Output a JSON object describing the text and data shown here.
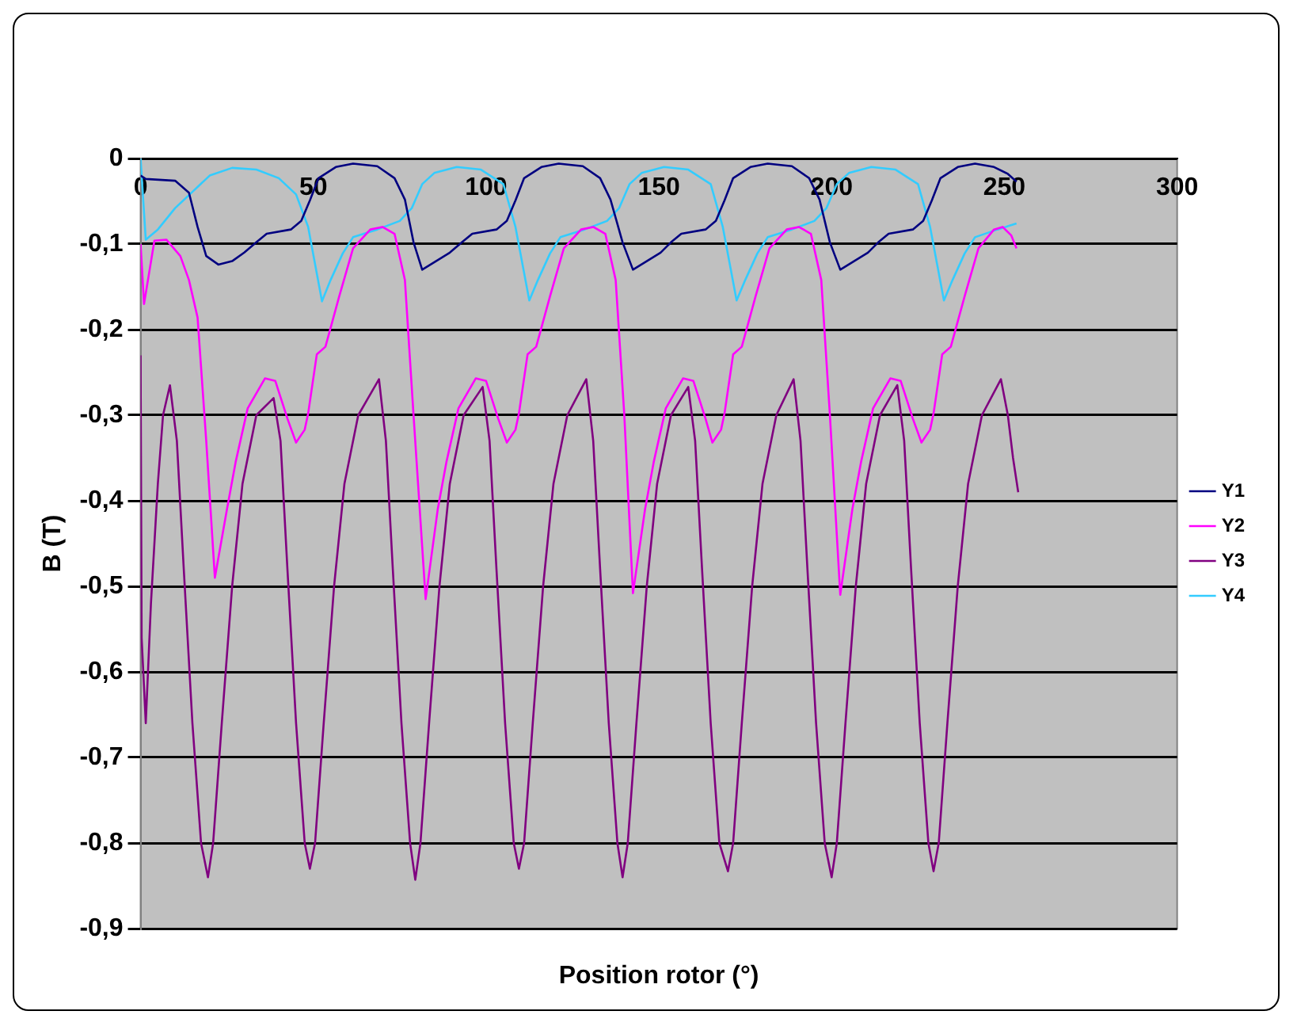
{
  "chart_data": {
    "type": "line",
    "xlabel": "Position rotor (°)",
    "ylabel": "B (T)",
    "xlim": [
      0,
      300
    ],
    "xticks": [
      0,
      50,
      100,
      150,
      200,
      250,
      300
    ],
    "ylim": [
      -0.9,
      0
    ],
    "yticks": [
      {
        "value": 0,
        "label": "0"
      },
      {
        "value": -0.1,
        "label": "-0,1"
      },
      {
        "value": -0.2,
        "label": "-0,2"
      },
      {
        "value": -0.3,
        "label": "-0,3"
      },
      {
        "value": -0.4,
        "label": "-0,4"
      },
      {
        "value": -0.5,
        "label": "-0,5"
      },
      {
        "value": -0.6,
        "label": "-0,6"
      },
      {
        "value": -0.7,
        "label": "-0,7"
      },
      {
        "value": -0.8,
        "label": "-0,8"
      },
      {
        "value": -0.9,
        "label": "-0,9"
      }
    ],
    "grid": "y",
    "legend": "right",
    "marker": "none",
    "line_style": "solid",
    "series": [
      {
        "name": "Y1",
        "color": "#000080",
        "x": [
          0,
          1.5,
          10,
          14,
          16.5,
          19,
          22.5,
          26.5,
          30,
          33.5,
          36.5,
          43.5,
          46.5,
          49,
          51.5,
          56.5,
          61.5,
          68.5,
          73.5,
          76.5,
          79,
          81.5,
          85.5,
          89.5,
          93,
          96,
          103,
          106,
          108.5,
          111,
          116,
          121,
          128,
          133,
          136,
          139.5,
          142.5,
          146.5,
          150.5,
          153.5,
          156.5,
          163.5,
          166.5,
          169,
          171.5,
          176.5,
          181.5,
          188.5,
          193.5,
          196.5,
          199.5,
          202.5,
          206.5,
          210.5,
          213.5,
          216.5,
          223.5,
          226.5,
          229,
          231.5,
          236.5,
          241.5,
          247,
          251,
          253.5
        ],
        "values": [
          -0.02,
          -0.024,
          -0.026,
          -0.04,
          -0.08,
          -0.114,
          -0.124,
          -0.12,
          -0.11,
          -0.098,
          -0.088,
          -0.083,
          -0.073,
          -0.049,
          -0.023,
          -0.01,
          -0.006,
          -0.009,
          -0.023,
          -0.048,
          -0.098,
          -0.13,
          -0.12,
          -0.11,
          -0.098,
          -0.088,
          -0.083,
          -0.073,
          -0.049,
          -0.023,
          -0.01,
          -0.006,
          -0.009,
          -0.023,
          -0.048,
          -0.098,
          -0.13,
          -0.12,
          -0.11,
          -0.098,
          -0.088,
          -0.083,
          -0.073,
          -0.049,
          -0.023,
          -0.01,
          -0.006,
          -0.009,
          -0.023,
          -0.048,
          -0.098,
          -0.13,
          -0.12,
          -0.11,
          -0.098,
          -0.088,
          -0.083,
          -0.073,
          -0.049,
          -0.023,
          -0.01,
          -0.006,
          -0.01,
          -0.018,
          -0.027
        ]
      },
      {
        "name": "Y2",
        "color": "#ff00ff",
        "x": [
          0,
          1,
          4,
          7.5,
          11.5,
          14,
          16.5,
          19,
          21.5,
          25,
          27.5,
          31,
          36,
          39,
          42.5,
          45,
          47.5,
          48.5,
          51,
          53.5,
          57.5,
          61.5,
          66.5,
          70,
          73.5,
          76.5,
          79,
          82.5,
          86,
          88.5,
          92,
          97,
          100,
          103.5,
          106,
          108.5,
          109.5,
          112,
          114.5,
          118.5,
          122.5,
          127.5,
          131,
          134.5,
          137.5,
          140,
          142.5,
          146,
          148.5,
          152,
          157,
          160,
          163.5,
          165.5,
          168,
          169,
          171.5,
          174,
          178,
          182,
          187,
          190.5,
          194,
          197,
          199.5,
          202.5,
          206,
          208.5,
          212,
          217,
          220,
          223.5,
          226,
          228.5,
          229.5,
          232,
          234.5,
          238.5,
          242.5,
          247,
          249.5,
          252,
          253.5
        ],
        "values": [
          -0.1,
          -0.17,
          -0.096,
          -0.095,
          -0.114,
          -0.142,
          -0.186,
          -0.33,
          -0.49,
          -0.41,
          -0.355,
          -0.292,
          -0.257,
          -0.26,
          -0.304,
          -0.332,
          -0.317,
          -0.298,
          -0.229,
          -0.22,
          -0.161,
          -0.105,
          -0.083,
          -0.08,
          -0.088,
          -0.142,
          -0.3,
          -0.515,
          -0.41,
          -0.355,
          -0.292,
          -0.257,
          -0.26,
          -0.304,
          -0.332,
          -0.317,
          -0.298,
          -0.229,
          -0.22,
          -0.161,
          -0.105,
          -0.083,
          -0.08,
          -0.088,
          -0.142,
          -0.3,
          -0.508,
          -0.41,
          -0.355,
          -0.292,
          -0.257,
          -0.26,
          -0.304,
          -0.332,
          -0.317,
          -0.298,
          -0.229,
          -0.22,
          -0.161,
          -0.105,
          -0.083,
          -0.08,
          -0.088,
          -0.142,
          -0.3,
          -0.51,
          -0.41,
          -0.355,
          -0.292,
          -0.257,
          -0.26,
          -0.304,
          -0.332,
          -0.317,
          -0.298,
          -0.229,
          -0.22,
          -0.161,
          -0.105,
          -0.083,
          -0.08,
          -0.09,
          -0.105
        ]
      },
      {
        "name": "Y3",
        "color": "#800080",
        "x": [
          0,
          0.3,
          1.5,
          3,
          5,
          6.5,
          8.5,
          10.5,
          12.5,
          15,
          17.5,
          19.5,
          21,
          23.5,
          26.5,
          29.5,
          33.5,
          38.5,
          40.5,
          42.5,
          45,
          47.5,
          49,
          50.5,
          53,
          56,
          59,
          63,
          69,
          71,
          73,
          75.5,
          78,
          79.5,
          81,
          83.5,
          86.5,
          89.5,
          93.5,
          99,
          101,
          103,
          105.5,
          108,
          109.5,
          111,
          113.5,
          116.5,
          119.5,
          123.5,
          129,
          131,
          133,
          135.5,
          138,
          139.5,
          141,
          143.5,
          146.5,
          149.5,
          153.5,
          158.5,
          160.5,
          162.5,
          165,
          167.5,
          170,
          171.5,
          174,
          177,
          180,
          184,
          189,
          191,
          193,
          195.5,
          198,
          200,
          201.5,
          204,
          207,
          210,
          214,
          219,
          221,
          223,
          225.5,
          228,
          229.5,
          231,
          233.5,
          236.5,
          239.5,
          243.5,
          249,
          251,
          252.5,
          254
        ],
        "values": [
          -0.23,
          -0.56,
          -0.66,
          -0.52,
          -0.38,
          -0.3,
          -0.265,
          -0.33,
          -0.48,
          -0.66,
          -0.8,
          -0.84,
          -0.8,
          -0.66,
          -0.5,
          -0.38,
          -0.3,
          -0.28,
          -0.33,
          -0.48,
          -0.66,
          -0.8,
          -0.83,
          -0.8,
          -0.66,
          -0.5,
          -0.38,
          -0.3,
          -0.258,
          -0.33,
          -0.48,
          -0.66,
          -0.8,
          -0.843,
          -0.8,
          -0.66,
          -0.5,
          -0.38,
          -0.3,
          -0.267,
          -0.33,
          -0.48,
          -0.66,
          -0.8,
          -0.83,
          -0.8,
          -0.66,
          -0.5,
          -0.38,
          -0.3,
          -0.258,
          -0.33,
          -0.48,
          -0.66,
          -0.8,
          -0.84,
          -0.8,
          -0.66,
          -0.5,
          -0.38,
          -0.3,
          -0.267,
          -0.33,
          -0.48,
          -0.66,
          -0.8,
          -0.833,
          -0.8,
          -0.66,
          -0.5,
          -0.38,
          -0.3,
          -0.258,
          -0.33,
          -0.48,
          -0.66,
          -0.8,
          -0.84,
          -0.8,
          -0.66,
          -0.5,
          -0.38,
          -0.3,
          -0.265,
          -0.33,
          -0.48,
          -0.66,
          -0.8,
          -0.833,
          -0.8,
          -0.66,
          -0.5,
          -0.38,
          -0.3,
          -0.258,
          -0.3,
          -0.35,
          -0.39
        ]
      },
      {
        "name": "Y4",
        "color": "#33ccff",
        "x": [
          0,
          1.5,
          5,
          10,
          15,
          20,
          26.5,
          33.5,
          40,
          45,
          48.5,
          52.5,
          55,
          58.5,
          61.5,
          68.5,
          75,
          78.5,
          81.5,
          85,
          91.5,
          98.5,
          105,
          108.5,
          112.5,
          115,
          118.5,
          121.5,
          128.5,
          135,
          138.5,
          141.5,
          145,
          151.5,
          158.5,
          165,
          168.5,
          172.5,
          175,
          178.5,
          181.5,
          188.5,
          195,
          198.5,
          201.5,
          205,
          211.5,
          218.5,
          225,
          228.5,
          232.5,
          235,
          238.5,
          241.5,
          248,
          253.5
        ],
        "values": [
          0,
          -0.095,
          -0.083,
          -0.058,
          -0.039,
          -0.02,
          -0.011,
          -0.013,
          -0.023,
          -0.042,
          -0.08,
          -0.167,
          -0.142,
          -0.111,
          -0.092,
          -0.083,
          -0.073,
          -0.058,
          -0.03,
          -0.017,
          -0.01,
          -0.013,
          -0.03,
          -0.08,
          -0.166,
          -0.142,
          -0.111,
          -0.092,
          -0.083,
          -0.073,
          -0.058,
          -0.03,
          -0.017,
          -0.01,
          -0.013,
          -0.03,
          -0.08,
          -0.166,
          -0.142,
          -0.111,
          -0.092,
          -0.083,
          -0.073,
          -0.058,
          -0.03,
          -0.017,
          -0.01,
          -0.013,
          -0.03,
          -0.08,
          -0.166,
          -0.142,
          -0.111,
          -0.092,
          -0.083,
          -0.076
        ]
      }
    ]
  }
}
